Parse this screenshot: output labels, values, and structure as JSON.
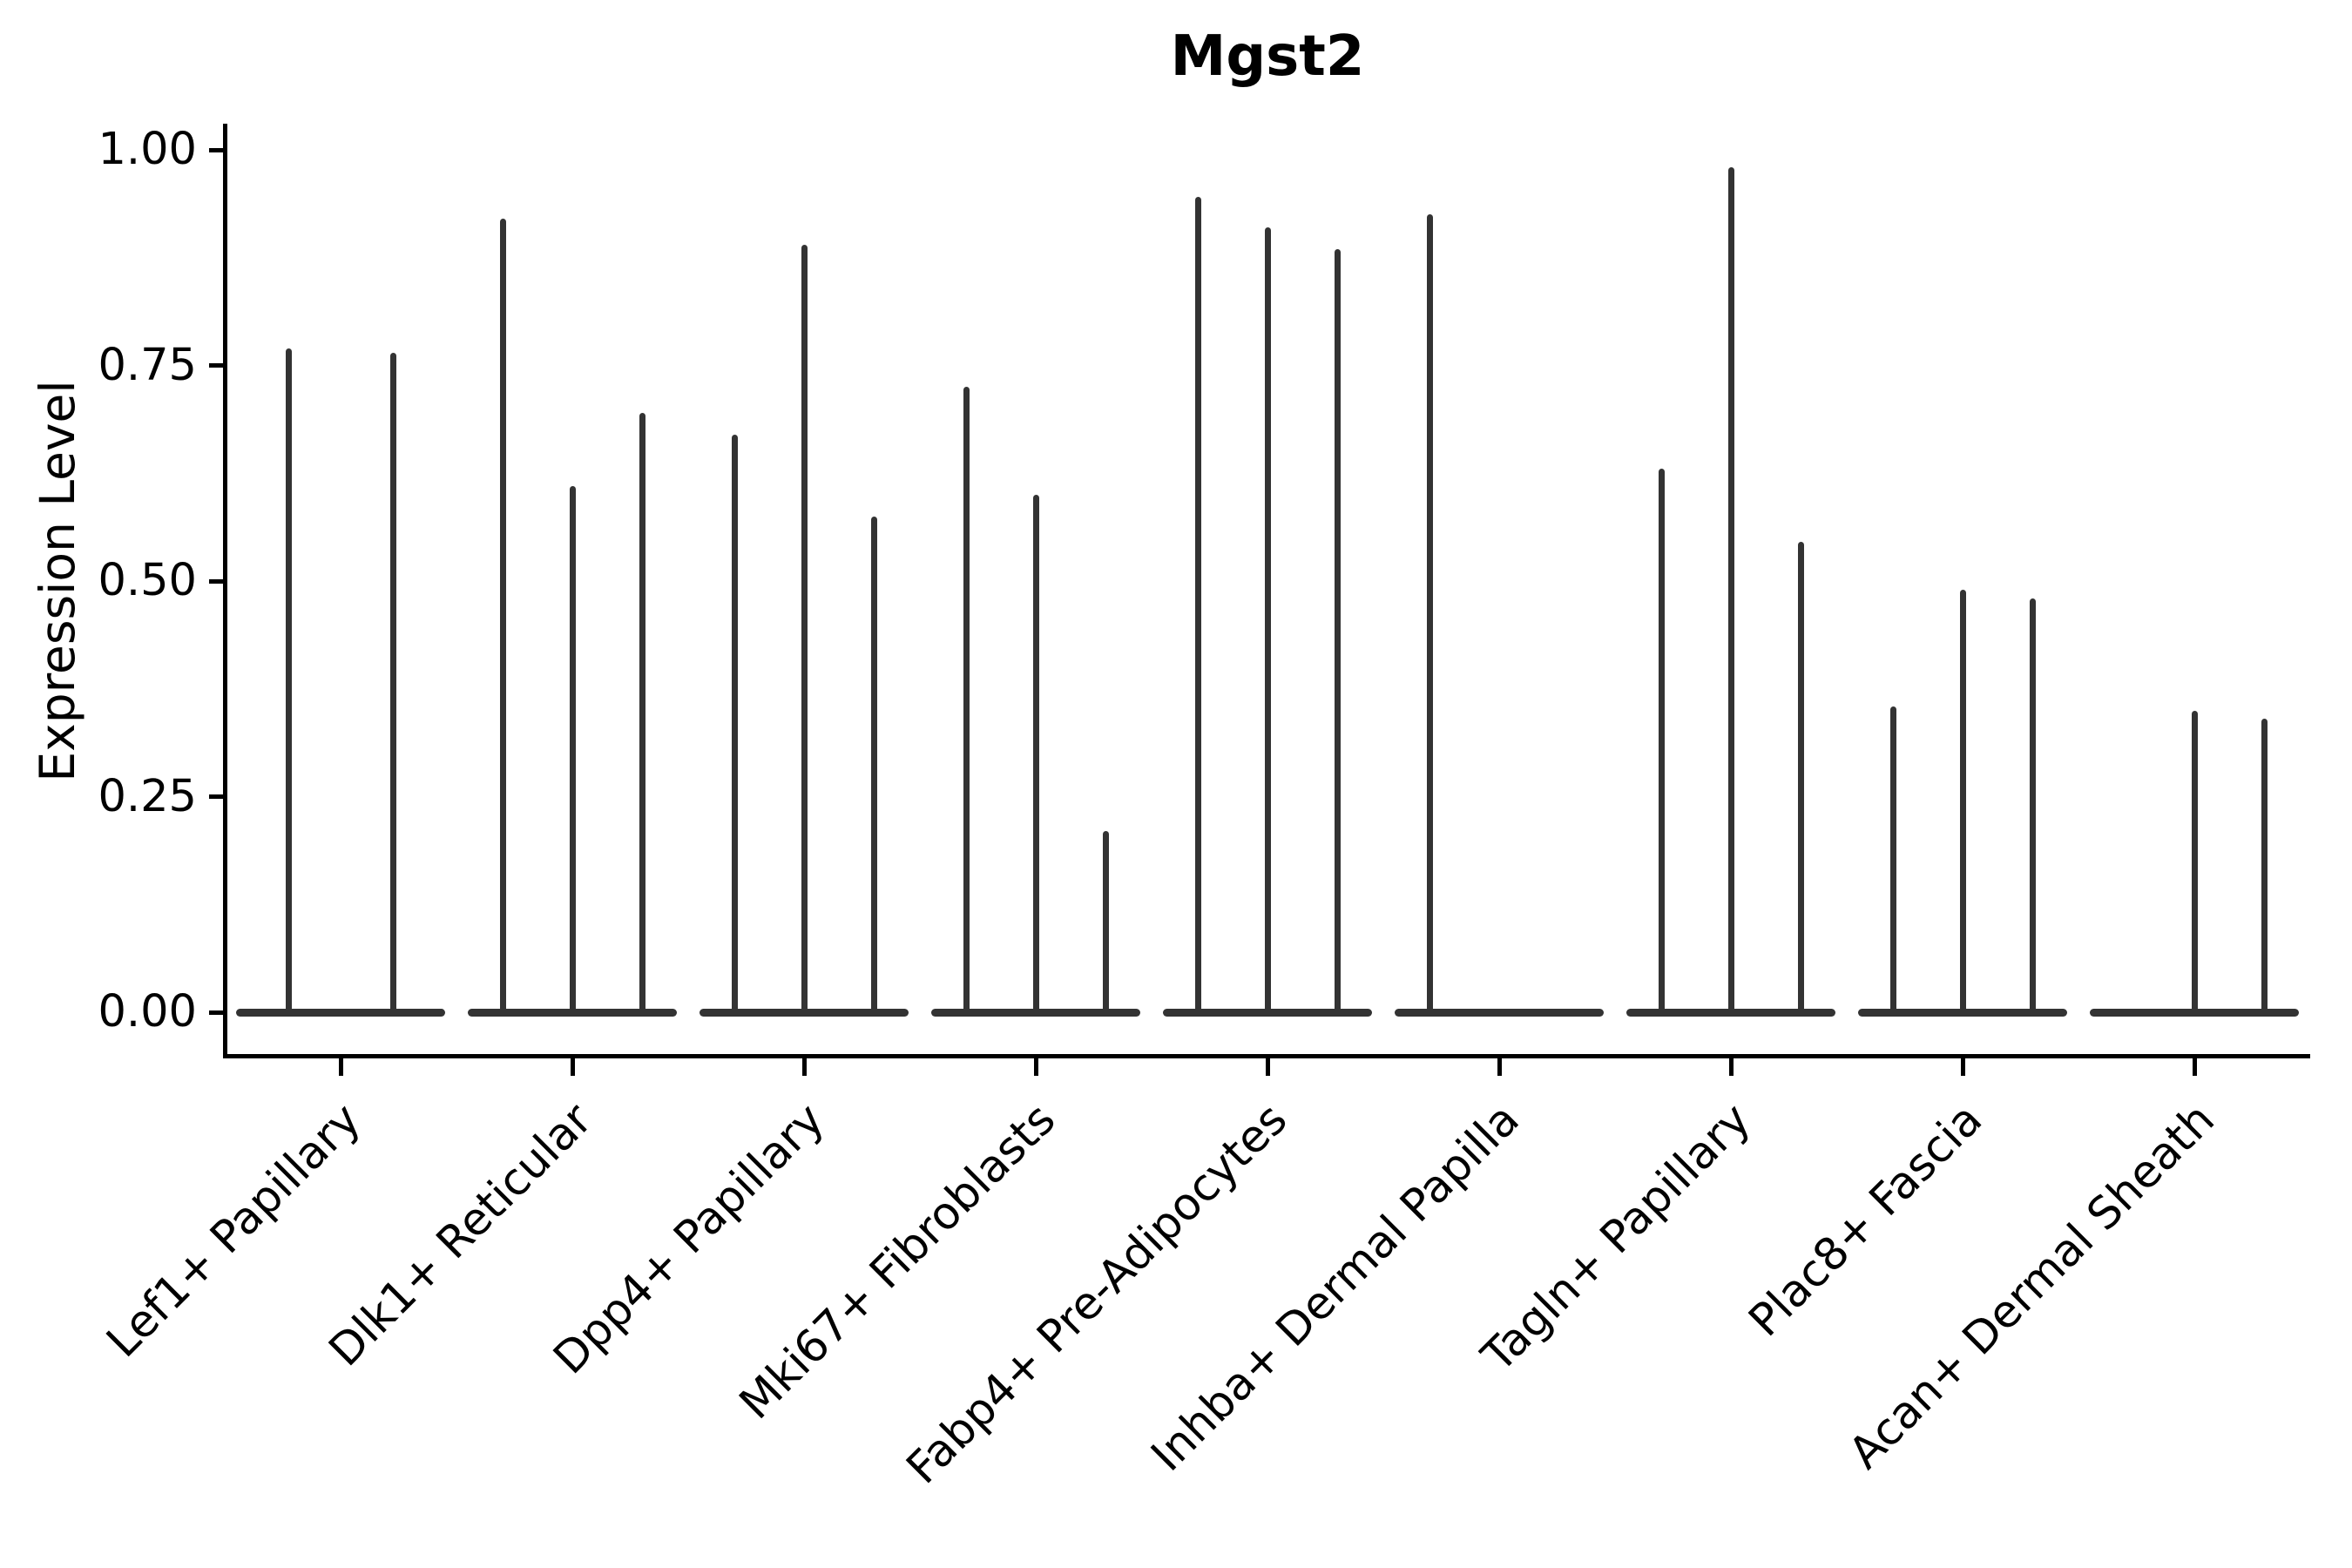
{
  "chart_data": {
    "type": "violin",
    "title": "Mgst2",
    "ylabel": "Expression Level",
    "xlabel": "",
    "grid": false,
    "legend_position": "none",
    "ylim": [
      -0.05,
      1.03
    ],
    "yticks": [
      {
        "label": "0.00",
        "value": 0.0
      },
      {
        "label": "0.25",
        "value": 0.25
      },
      {
        "label": "0.50",
        "value": 0.5
      },
      {
        "label": "0.75",
        "value": 0.75
      },
      {
        "label": "1.00",
        "value": 1.0
      }
    ],
    "violin_color": "#333333",
    "axis_color": "#000000",
    "description": "Violin plot; expression concentrated at 0 so each violin renders as a flat base at 0 with a thin spike up to its maximum expression value",
    "categories": [
      {
        "label": "Lef1+ Papillary",
        "violin_max_values": [
          0.77,
          0.765
        ]
      },
      {
        "label": "Dlk1+ Reticular",
        "violin_max_values": [
          0.92,
          0.61,
          0.695
        ]
      },
      {
        "label": "Dpp4+ Papillary",
        "violin_max_values": [
          0.67,
          0.89,
          0.575
        ]
      },
      {
        "label": "Mki67+ Fibroblasts",
        "violin_max_values": [
          0.725,
          0.6,
          0.21
        ]
      },
      {
        "label": "Fabp4+ Pre-Adipocytes",
        "violin_max_values": [
          0.945,
          0.91,
          0.885
        ]
      },
      {
        "label": "Inhba+ Dermal Papilla",
        "violin_max_values": [
          0.925,
          0,
          0
        ]
      },
      {
        "label": "Tagln+ Papillary",
        "violin_max_values": [
          0.63,
          0.98,
          0.545
        ]
      },
      {
        "label": "Plac8+ Fascia",
        "violin_max_values": [
          0.355,
          0.49,
          0.48
        ]
      },
      {
        "label": "Acan+ Dermal Sheath",
        "violin_max_values": [
          0,
          0.35,
          0.34
        ]
      }
    ]
  }
}
